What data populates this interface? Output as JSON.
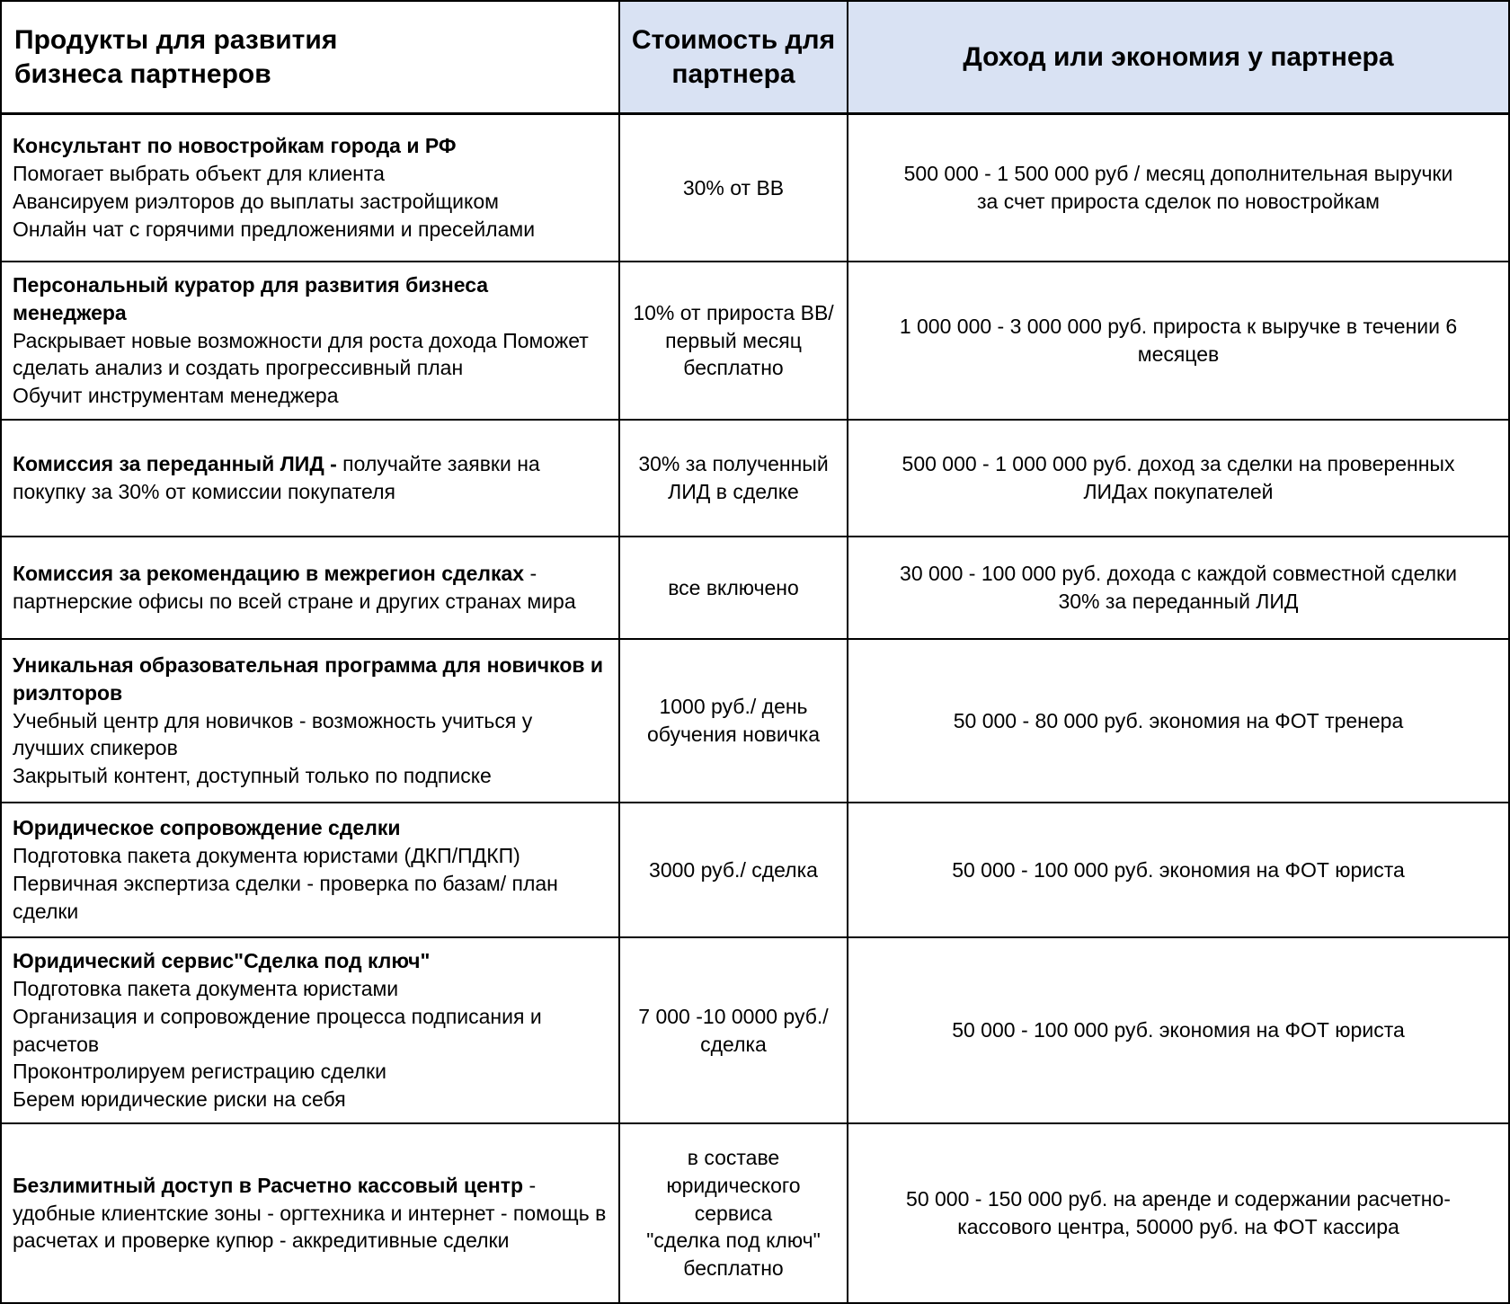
{
  "colors": {
    "header_bg": "#d9e2f3",
    "border": "#000000",
    "text": "#000000"
  },
  "table": {
    "headers": {
      "products": "Продукты для развития\nбизнеса партнеров",
      "cost": "Стоимость для\nпартнера",
      "income": "Доход или экономия у партнера"
    },
    "rows": [
      {
        "title": "Консультант по новостройкам города и РФ",
        "title_suffix": "",
        "lines": [
          "Помогает выбрать объект для клиента",
          "Авансируем риэлторов до выплаты застройщиком",
          "Онлайн чат с горячими предложениями и пресейлами"
        ],
        "cost": "30% от ВВ",
        "income": "500 000 - 1 500 000 руб / месяц дополнительная выручки\nза счет прироста сделок по новостройкам"
      },
      {
        "title": "Персональный куратор для развития бизнеса менеджера",
        "title_suffix": "",
        "lines": [
          "Раскрывает новые возможности для роста дохода Поможет сделать анализ и создать прогрессивный план",
          "Обучит инструментам менеджера"
        ],
        "cost": "10% от прироста ВВ/\nпервый месяц\nбесплатно",
        "income": "1 000 000 - 3 000 000  руб. прироста к выручке в течении 6\nмесяцев"
      },
      {
        "title": "Комиссия за переданный ЛИД - ",
        "title_suffix": "получайте заявки на покупку за 30% от комиссии покупателя",
        "lines": [],
        "cost": "30% за полученный\nЛИД в сделке",
        "income": "500 000 - 1 000 000 руб. доход за сделки на проверенных\nЛИДах покупателей"
      },
      {
        "title": "Комиссия за рекомендацию в межрегион сделках",
        "title_suffix": " - партнерские офисы по всей стране и других странах мира",
        "lines": [],
        "cost": "все включено",
        "income": "30 000 - 100 000 руб. дохода с каждой совместной сделки\n30% за переданный ЛИД"
      },
      {
        "title": "Уникальная образовательная программа для новичков и риэлторов",
        "title_suffix": "",
        "lines": [
          "Учебный центр для новичков -  возможность учиться у лучших спикеров",
          "Закрытый контент, доступный только по подписке"
        ],
        "cost": "1000 руб./ день\nобучения новичка",
        "income": "50  000 - 80 000 руб. экономия на ФОТ тренера"
      },
      {
        "title": "Юридическое сопровождение сделки",
        "title_suffix": "",
        "lines": [
          "Подготовка пакета документа юристами (ДКП/ПДКП)",
          "Первичная экспертиза сделки - проверка по базам/ план сделки"
        ],
        "cost": "3000 руб./ сделка",
        "income": "50 000 - 100 000 руб. экономия на ФОТ юриста"
      },
      {
        "title": "Юридический сервис\"Сделка под ключ\"",
        "title_suffix": "",
        "lines": [
          "Подготовка пакета документа юристами",
          "Организация и сопровождение процесса подписания и расчетов",
          "Проконтролируем регистрацию сделки",
          "Берем юридические риски на себя"
        ],
        "cost": "7 000 -10 0000 руб./\nсделка",
        "income": "50 000 - 100 000 руб. экономия на ФОТ юриста"
      },
      {
        "title": "Безлимитный доступ в Расчетно кассовый центр",
        "title_suffix": " - удобные клиентские зоны - оргтехника и интернет - помощь в расчетах и проверке купюр - аккредитивные сделки",
        "lines": [],
        "cost": "в составе\nюридического сервиса\n\"сделка под ключ\"\nбесплатно",
        "income": "50 000 - 150 000 руб. на аренде и содержании расчетно-\nкассового центра, 50000 руб. на ФОТ кассира"
      }
    ]
  }
}
